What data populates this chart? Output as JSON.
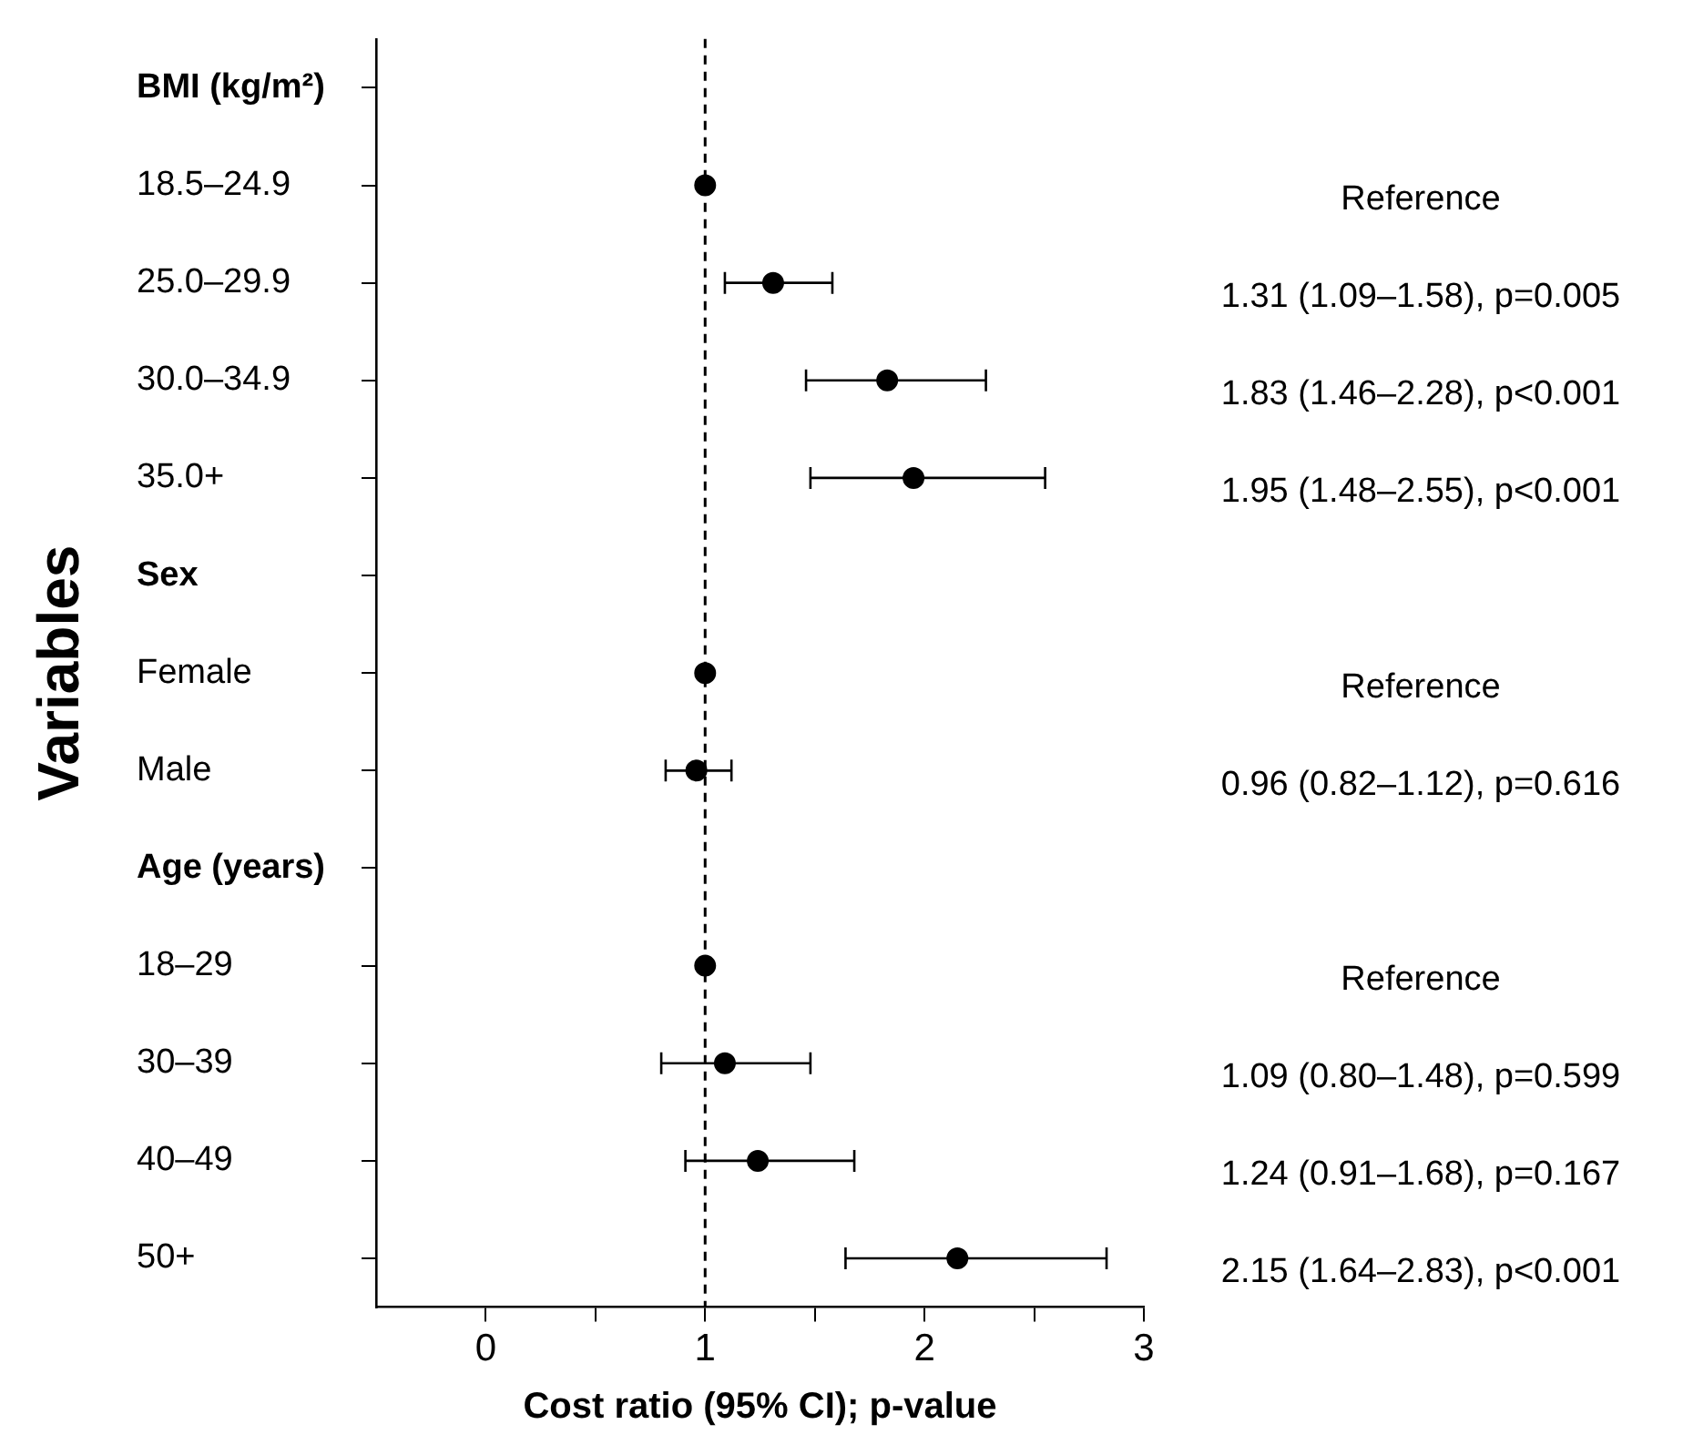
{
  "chart_data": {
    "type": "scatter",
    "orientation": "horizontal",
    "ylabel": "Variables",
    "xlabel": "Cost ratio (95% CI); p-value",
    "categories": [
      "BMI (kg/m²)",
      "18.5–24.9",
      "25.0–29.9",
      "30.0–34.9",
      "35.0+",
      "Sex",
      "Female",
      "Male",
      "Age (years)",
      "18–29",
      "30–39",
      "40–49",
      "50+"
    ],
    "values": [
      null,
      1,
      1.31,
      1.83,
      1.95,
      null,
      1,
      0.96,
      null,
      1,
      1.09,
      1.24,
      2.15
    ],
    "errors": [
      null,
      null,
      [
        1.09,
        1.58
      ],
      [
        1.46,
        2.28
      ],
      [
        1.48,
        2.55
      ],
      null,
      null,
      [
        0.82,
        1.12
      ],
      null,
      null,
      [
        0.8,
        1.48
      ],
      [
        0.91,
        1.68
      ],
      [
        1.64,
        2.83
      ]
    ],
    "annotations": [
      "Reference",
      "1.31 (1.09–1.58), p=0.005",
      "1.83 (1.46–2.28), p<0.001",
      "1.95 (1.48–2.55), p<0.001",
      "Reference",
      "0.96 (0.82–1.12), p=0.616",
      "Reference",
      "1.09 (0.80–1.48), p=0.599",
      "1.24 (0.91–1.68), p=0.167",
      "2.15 (1.64–2.83), p<0.001"
    ],
    "color": "#000000",
    "marker": "circle",
    "xlim": [
      -0.5,
      3
    ],
    "xticks": [
      0,
      {
        "value": 0.5,
        "label": null
      },
      1,
      {
        "value": 1.5,
        "label": null
      },
      2,
      {
        "value": 2.5,
        "label": null
      },
      3
    ],
    "ref_lines": [
      {
        "axis": "x",
        "value": 1,
        "line_style": "dashed",
        "color": "#000000"
      }
    ],
    "grid": false,
    "legend": false
  }
}
